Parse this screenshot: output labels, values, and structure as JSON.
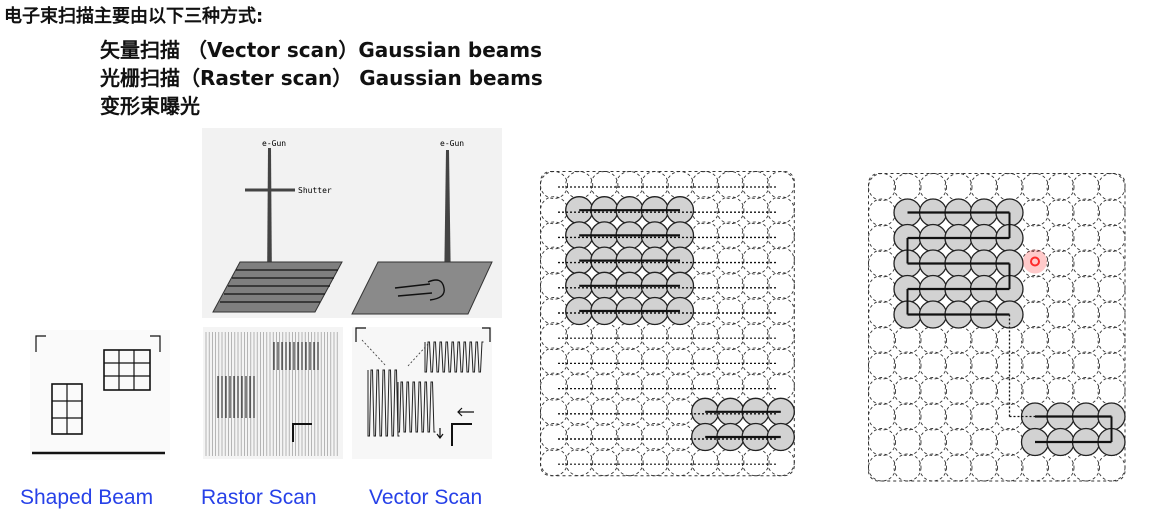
{
  "slide": {
    "title": "电子束扫描主要由以下三种方式:",
    "lines": [
      "矢量扫描 （Vector scan）Gaussian beams",
      "光栅扫描（Raster scan） Gaussian beams",
      "变形束曝光"
    ]
  },
  "figure_labels": {
    "egun_1": "e-Gun",
    "shutter": "Shutter",
    "egun_2": "e-Gun"
  },
  "captions": [
    "Shaped Beam",
    "Rastor Scan",
    "Vector Scan"
  ],
  "colors": {
    "caption": "#2741e8",
    "highlight": "#ff2b2b",
    "spot_fill": "#d2d2d2"
  }
}
